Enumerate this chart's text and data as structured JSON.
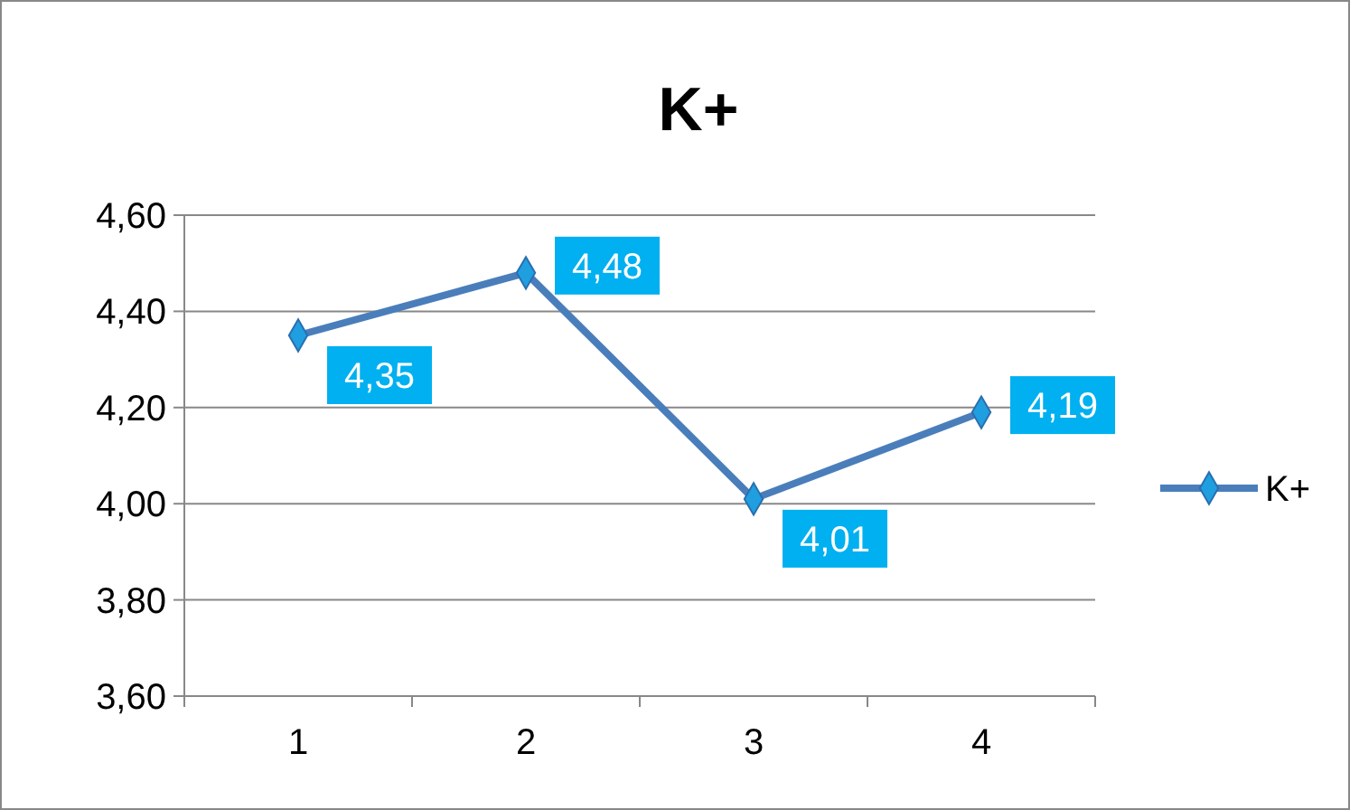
{
  "chart_data": {
    "type": "line",
    "title": "K+",
    "categories": [
      "1",
      "2",
      "3",
      "4"
    ],
    "series": [
      {
        "name": "K+",
        "color": "#4a7ebb",
        "values": [
          4.35,
          4.48,
          4.01,
          4.19
        ],
        "value_labels": [
          "4,35",
          "4,48",
          "4,01",
          "4,19"
        ]
      }
    ],
    "ylim": [
      3.6,
      4.6
    ],
    "yticks": [
      {
        "value": 3.6,
        "label": "3,60"
      },
      {
        "value": 3.8,
        "label": "3,80"
      },
      {
        "value": 4.0,
        "label": "4,00"
      },
      {
        "value": 4.2,
        "label": "4,20"
      },
      {
        "value": 4.4,
        "label": "4,40"
      },
      {
        "value": 4.6,
        "label": "4,60"
      }
    ],
    "grid": "y",
    "legend": "right",
    "marker": "diamond",
    "line_style": "solid"
  }
}
